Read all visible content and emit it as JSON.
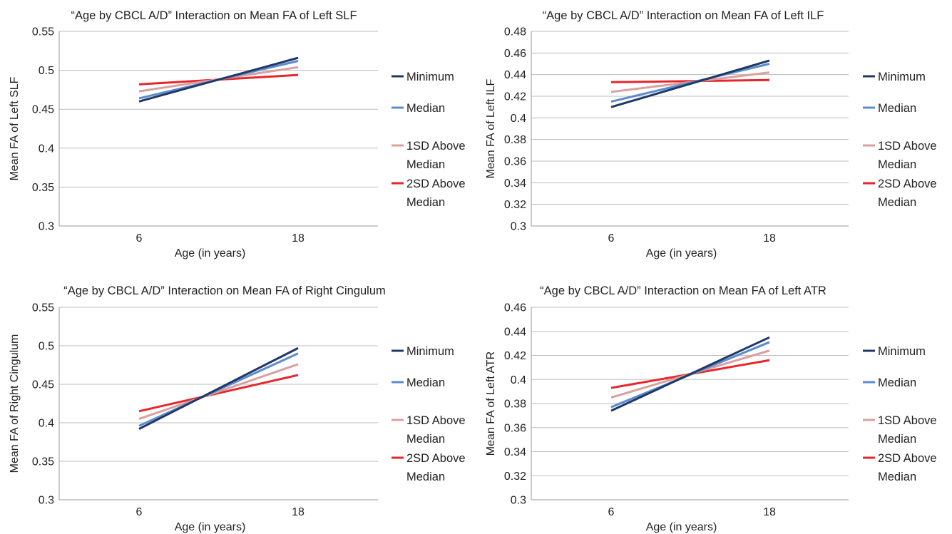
{
  "chart_data": [
    {
      "type": "line",
      "title": "“Age by CBCL A/D” Interaction on Mean FA of Left SLF",
      "xlabel": "Age (in years)",
      "ylabel": "Mean FA of Left SLF",
      "categories": [
        "6",
        "18"
      ],
      "ylim": [
        0.3,
        0.55
      ],
      "yticks": [
        "0.55",
        "0.5",
        "0.45",
        "0.4",
        "0.35",
        "0.3"
      ],
      "grid": true,
      "legend_position": "right",
      "series": [
        {
          "name": "Minimum",
          "color": "#1f3864",
          "values": [
            0.46,
            0.516
          ]
        },
        {
          "name": "Median",
          "color": "#5b8bd0",
          "values": [
            0.464,
            0.512
          ]
        },
        {
          "name": "1SD Above Median",
          "color": "#d9a0a0",
          "values": [
            0.473,
            0.504
          ]
        },
        {
          "name": "2SD Above Median",
          "color": "#e8262a",
          "values": [
            0.482,
            0.494
          ]
        }
      ]
    },
    {
      "type": "line",
      "title": "“Age by CBCL A/D” Interaction on Mean FA of Left ILF",
      "xlabel": "Age (in years)",
      "ylabel": "Mean FA of Left ILF",
      "categories": [
        "6",
        "18"
      ],
      "ylim": [
        0.3,
        0.48
      ],
      "yticks": [
        "0.48",
        "0.46",
        "0.44",
        "0.42",
        "0.4",
        "0.38",
        "0.36",
        "0.34",
        "0.32",
        "0.3"
      ],
      "grid": true,
      "legend_position": "right",
      "series": [
        {
          "name": "Minimum",
          "color": "#1f3864",
          "values": [
            0.41,
            0.453
          ]
        },
        {
          "name": "Median",
          "color": "#5b8bd0",
          "values": [
            0.415,
            0.45
          ]
        },
        {
          "name": "1SD Above Median",
          "color": "#d9a0a0",
          "values": [
            0.424,
            0.442
          ]
        },
        {
          "name": "2SD Above Median",
          "color": "#e8262a",
          "values": [
            0.433,
            0.435
          ]
        }
      ]
    },
    {
      "type": "line",
      "title": "“Age by CBCL A/D” Interaction on Mean FA of Right Cingulum",
      "xlabel": "Age (in years)",
      "ylabel": "Mean FA of Right Cingulum",
      "categories": [
        "6",
        "18"
      ],
      "ylim": [
        0.3,
        0.55
      ],
      "yticks": [
        "0.55",
        "0.5",
        "0.45",
        "0.4",
        "0.35",
        "0.3"
      ],
      "grid": true,
      "legend_position": "right",
      "series": [
        {
          "name": "Minimum",
          "color": "#1f3864",
          "values": [
            0.392,
            0.497
          ]
        },
        {
          "name": "Median",
          "color": "#5b8bd0",
          "values": [
            0.396,
            0.49
          ]
        },
        {
          "name": "1SD Above Median",
          "color": "#d9a0a0",
          "values": [
            0.405,
            0.476
          ]
        },
        {
          "name": "2SD Above Median",
          "color": "#e8262a",
          "values": [
            0.415,
            0.462
          ]
        }
      ]
    },
    {
      "type": "line",
      "title": "“Age by CBCL A/D” Interaction on Mean FA of Left ATR",
      "xlabel": "Age (in years)",
      "ylabel": "Mean FA of Left ATR",
      "categories": [
        "6",
        "18"
      ],
      "ylim": [
        0.3,
        0.46
      ],
      "yticks": [
        "0.46",
        "0.44",
        "0.42",
        "0.4",
        "0.38",
        "0.36",
        "0.34",
        "0.32",
        "0.3"
      ],
      "grid": true,
      "legend_position": "right",
      "series": [
        {
          "name": "Minimum",
          "color": "#1f3864",
          "values": [
            0.374,
            0.435
          ]
        },
        {
          "name": "Median",
          "color": "#5b8bd0",
          "values": [
            0.377,
            0.431
          ]
        },
        {
          "name": "1SD Above Median",
          "color": "#d9a0a0",
          "values": [
            0.385,
            0.424
          ]
        },
        {
          "name": "2SD Above Median",
          "color": "#e8262a",
          "values": [
            0.393,
            0.416
          ]
        }
      ]
    }
  ]
}
